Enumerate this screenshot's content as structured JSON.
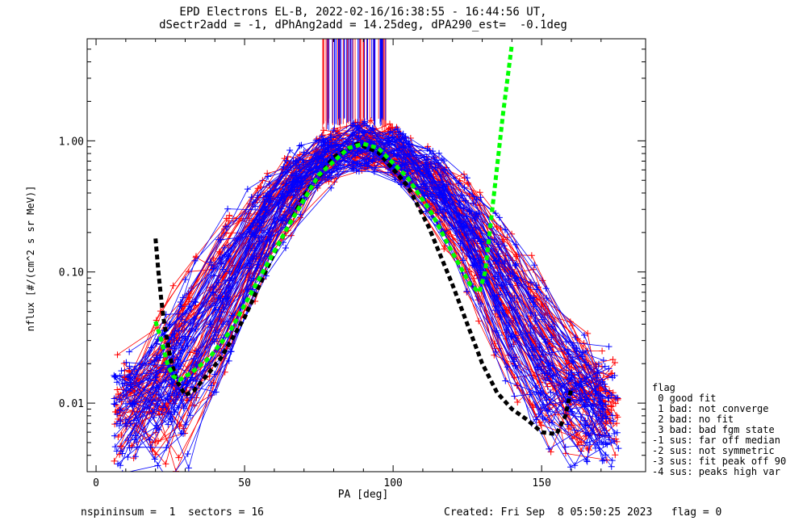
{
  "title_line1": "EPD Electrons EL-B, 2022-02-16/16:38:55 - 16:44:56 UT,",
  "title_line2": "dSectr2add = -1, dPhAng2add = 14.25deg, dPA290_est=  -0.1deg",
  "footer_left": "nspininsum =  1  sectors = 16",
  "footer_right": "Created: Fri Sep  8 05:50:25 2023   flag = 0",
  "legend": {
    "title": "flag",
    "items": [
      " 0 good fit",
      " 1 bad: not converge",
      " 2 bad: no fit",
      " 3 bad: bad fgm state",
      "-1 sus: far off median",
      "-2 sus: not symmetric",
      "-3 sus: fit peak off 90",
      "-4 sus: peaks high var"
    ]
  },
  "colors": {
    "red": "#ff0000",
    "blue": "#0000ff",
    "green": "#00ff00",
    "black": "#000000"
  },
  "chart_data": {
    "type": "line",
    "title": "EPD Electrons EL-B, 2022-02-16/16:38:55 - 16:44:56 UT, dSectr2add = -1, dPhAng2add = 14.25deg, dPA290_est=  -0.1deg",
    "xlabel": "PA [deg]",
    "ylabel": "nflux [#/(cm^2 s sr MeV)]",
    "xlim": [
      -3,
      185
    ],
    "ylim": [
      0.003,
      6
    ],
    "yscale": "log",
    "x_ticks": [
      0,
      50,
      100,
      150
    ],
    "x_tick_labels": [
      "0",
      "50",
      "100",
      "150"
    ],
    "y_ticks": [
      0.01,
      0.1,
      1.0
    ],
    "y_tick_labels": [
      "0.01",
      "0.10",
      "1.00"
    ],
    "series": [
      {
        "color": "#000000",
        "style": "dashed-thick",
        "x": [
          20,
          21,
          22,
          23,
          24,
          25,
          27,
          30,
          33,
          37,
          42,
          50,
          60,
          70,
          80,
          88,
          95,
          105,
          112,
          120,
          125,
          130,
          135,
          140,
          145,
          150,
          155,
          158,
          160
        ],
        "y": [
          0.18,
          0.1,
          0.06,
          0.04,
          0.03,
          0.022,
          0.015,
          0.0115,
          0.0125,
          0.016,
          0.022,
          0.045,
          0.14,
          0.38,
          0.75,
          0.95,
          0.82,
          0.45,
          0.22,
          0.08,
          0.04,
          0.02,
          0.012,
          0.009,
          0.0075,
          0.006,
          0.0058,
          0.008,
          0.013
        ]
      },
      {
        "color": "#00ff00",
        "style": "dashed-thick",
        "x": [
          20,
          22,
          24,
          26,
          28,
          32,
          38,
          45,
          55,
          65,
          75,
          85,
          90,
          95,
          105,
          113,
          120,
          126,
          129,
          131,
          134,
          137,
          140
        ],
        "y": [
          0.042,
          0.03,
          0.02,
          0.016,
          0.015,
          0.017,
          0.022,
          0.035,
          0.09,
          0.23,
          0.55,
          0.88,
          0.95,
          0.88,
          0.52,
          0.28,
          0.14,
          0.08,
          0.07,
          0.1,
          0.4,
          1.6,
          5.5
        ]
      }
    ],
    "red_series_count": 60,
    "blue_series_count": 60
  }
}
